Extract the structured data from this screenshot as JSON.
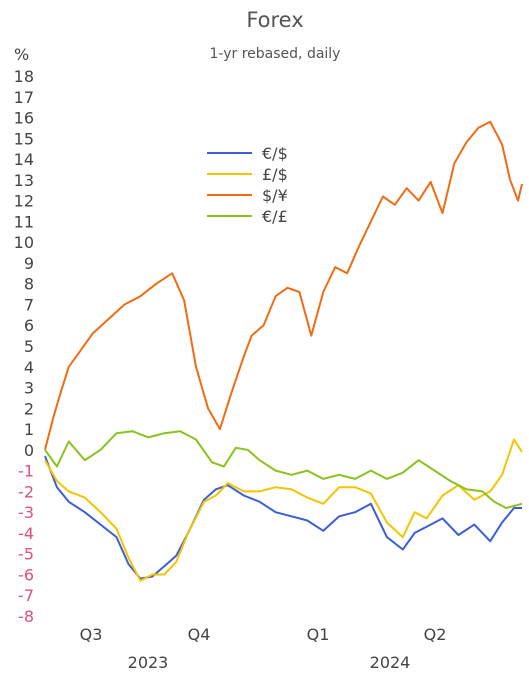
{
  "chart_data": {
    "type": "line",
    "title": "Forex",
    "subtitle": "1-yr rebased, daily",
    "ylabel": "%",
    "ylim": [
      -8,
      18
    ],
    "yticks": [
      "18",
      "17",
      "16",
      "15",
      "14",
      "13",
      "12",
      "11",
      "10",
      "9",
      "8",
      "7",
      "6",
      "5",
      "4",
      "3",
      "2",
      "1",
      "0",
      "-1",
      "-2",
      "-3",
      "-4",
      "-5",
      "-6",
      "-7",
      "-8"
    ],
    "xlim": [
      0,
      12
    ],
    "x_tick_labels": [
      "Q3",
      "Q4",
      "Q1",
      "Q2"
    ],
    "x_year_labels": [
      "2023",
      "2024"
    ],
    "legend_position": "upper-middle",
    "grid": false,
    "series": [
      {
        "name": "€/$",
        "color": "#3a5fd4",
        "x": [
          0,
          0.3,
          0.6,
          1.0,
          1.4,
          1.8,
          2.1,
          2.4,
          2.7,
          3.0,
          3.3,
          3.6,
          4.0,
          4.3,
          4.6,
          5.0,
          5.4,
          5.8,
          6.2,
          6.6,
          7.0,
          7.4,
          7.8,
          8.2,
          8.6,
          9.0,
          9.3,
          9.6,
          10.0,
          10.4,
          10.8,
          11.2,
          11.5,
          11.8,
          12.0
        ],
        "values": [
          -0.3,
          -1.8,
          -2.5,
          -3.0,
          -3.6,
          -4.2,
          -5.5,
          -6.2,
          -6.1,
          -5.6,
          -5.1,
          -4.0,
          -2.4,
          -1.9,
          -1.7,
          -2.2,
          -2.5,
          -3.0,
          -3.2,
          -3.4,
          -3.9,
          -3.2,
          -3.0,
          -2.6,
          -4.2,
          -4.8,
          -4.0,
          -3.7,
          -3.3,
          -4.1,
          -3.6,
          -4.4,
          -3.5,
          -2.8,
          -2.8
        ]
      },
      {
        "name": "£/$",
        "color": "#f5c400",
        "x": [
          0,
          0.3,
          0.6,
          1.0,
          1.4,
          1.8,
          2.1,
          2.4,
          2.7,
          3.0,
          3.3,
          3.6,
          4.0,
          4.3,
          4.6,
          5.0,
          5.4,
          5.8,
          6.2,
          6.6,
          7.0,
          7.4,
          7.8,
          8.2,
          8.6,
          9.0,
          9.3,
          9.6,
          10.0,
          10.4,
          10.8,
          11.2,
          11.5,
          11.8,
          12.0
        ],
        "values": [
          -0.5,
          -1.5,
          -2.0,
          -2.3,
          -3.0,
          -3.8,
          -5.2,
          -6.3,
          -6.0,
          -6.0,
          -5.4,
          -4.0,
          -2.5,
          -2.2,
          -1.6,
          -2.0,
          -2.0,
          -1.8,
          -1.9,
          -2.3,
          -2.6,
          -1.8,
          -1.8,
          -2.1,
          -3.5,
          -4.2,
          -3.0,
          -3.3,
          -2.2,
          -1.7,
          -2.4,
          -2.0,
          -1.2,
          0.5,
          -0.1
        ]
      },
      {
        "name": "$/¥",
        "color": "#f06c14",
        "x": [
          0,
          0.2,
          0.4,
          0.6,
          0.9,
          1.2,
          1.6,
          2.0,
          2.4,
          2.8,
          3.2,
          3.5,
          3.8,
          4.1,
          4.4,
          4.7,
          5.0,
          5.2,
          5.5,
          5.8,
          6.1,
          6.4,
          6.7,
          7.0,
          7.3,
          7.6,
          7.9,
          8.2,
          8.5,
          8.8,
          9.1,
          9.4,
          9.7,
          10.0,
          10.3,
          10.6,
          10.9,
          11.2,
          11.5,
          11.7,
          11.9,
          12.0
        ],
        "values": [
          0.0,
          1.5,
          2.8,
          4.0,
          4.8,
          5.6,
          6.3,
          7.0,
          7.4,
          8.0,
          8.5,
          7.2,
          4.0,
          2.0,
          1.0,
          2.8,
          4.5,
          5.5,
          6.0,
          7.4,
          7.8,
          7.6,
          5.5,
          7.6,
          8.8,
          8.5,
          9.8,
          11.0,
          12.2,
          11.8,
          12.6,
          12.0,
          12.9,
          11.4,
          13.8,
          14.8,
          15.5,
          15.8,
          14.7,
          13.0,
          12.0,
          12.8
        ]
      },
      {
        "name": "€/£",
        "color": "#8ac21e",
        "x": [
          0,
          0.3,
          0.6,
          1.0,
          1.4,
          1.8,
          2.2,
          2.6,
          3.0,
          3.4,
          3.8,
          4.2,
          4.5,
          4.8,
          5.1,
          5.4,
          5.8,
          6.2,
          6.6,
          7.0,
          7.4,
          7.8,
          8.2,
          8.6,
          9.0,
          9.4,
          9.8,
          10.2,
          10.6,
          11.0,
          11.3,
          11.6,
          12.0
        ],
        "values": [
          0.0,
          -0.8,
          0.4,
          -0.5,
          0.0,
          0.8,
          0.9,
          0.6,
          0.8,
          0.9,
          0.5,
          -0.6,
          -0.8,
          0.1,
          0.0,
          -0.5,
          -1.0,
          -1.2,
          -1.0,
          -1.4,
          -1.2,
          -1.4,
          -1.0,
          -1.4,
          -1.1,
          -0.5,
          -1.0,
          -1.5,
          -1.9,
          -2.0,
          -2.5,
          -2.8,
          -2.6
        ]
      }
    ]
  }
}
